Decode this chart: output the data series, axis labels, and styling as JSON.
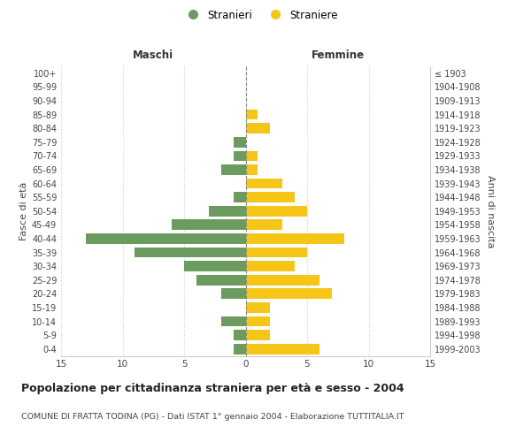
{
  "age_groups": [
    "0-4",
    "5-9",
    "10-14",
    "15-19",
    "20-24",
    "25-29",
    "30-34",
    "35-39",
    "40-44",
    "45-49",
    "50-54",
    "55-59",
    "60-64",
    "65-69",
    "70-74",
    "75-79",
    "80-84",
    "85-89",
    "90-94",
    "95-99",
    "100+"
  ],
  "birth_years": [
    "1999-2003",
    "1994-1998",
    "1989-1993",
    "1984-1988",
    "1979-1983",
    "1974-1978",
    "1969-1973",
    "1964-1968",
    "1959-1963",
    "1954-1958",
    "1949-1953",
    "1944-1948",
    "1939-1943",
    "1934-1938",
    "1929-1933",
    "1924-1928",
    "1919-1923",
    "1914-1918",
    "1909-1913",
    "1904-1908",
    "≤ 1903"
  ],
  "maschi": [
    1,
    1,
    2,
    0,
    2,
    4,
    5,
    9,
    13,
    6,
    3,
    1,
    0,
    2,
    1,
    1,
    0,
    0,
    0,
    0,
    0
  ],
  "femmine": [
    6,
    2,
    2,
    2,
    7,
    6,
    4,
    5,
    8,
    3,
    5,
    4,
    3,
    1,
    1,
    0,
    2,
    1,
    0,
    0,
    0
  ],
  "male_color": "#6b9b5e",
  "female_color": "#f5c518",
  "grid_color": "#cccccc",
  "center_line_color": "#888888",
  "xlim": 15,
  "title": "Popolazione per cittadinanza straniera per età e sesso - 2004",
  "subtitle": "COMUNE DI FRATTA TODINA (PG) - Dati ISTAT 1° gennaio 2004 - Elaborazione TUTTITALIA.IT",
  "ylabel_left": "Fasce di età",
  "ylabel_right": "Anni di nascita",
  "maschi_label": "Maschi",
  "femmine_label": "Femmine",
  "legend_stranieri": "Stranieri",
  "legend_straniere": "Straniere",
  "bg_color": "#ffffff",
  "plot_bg_color": "#ffffff"
}
